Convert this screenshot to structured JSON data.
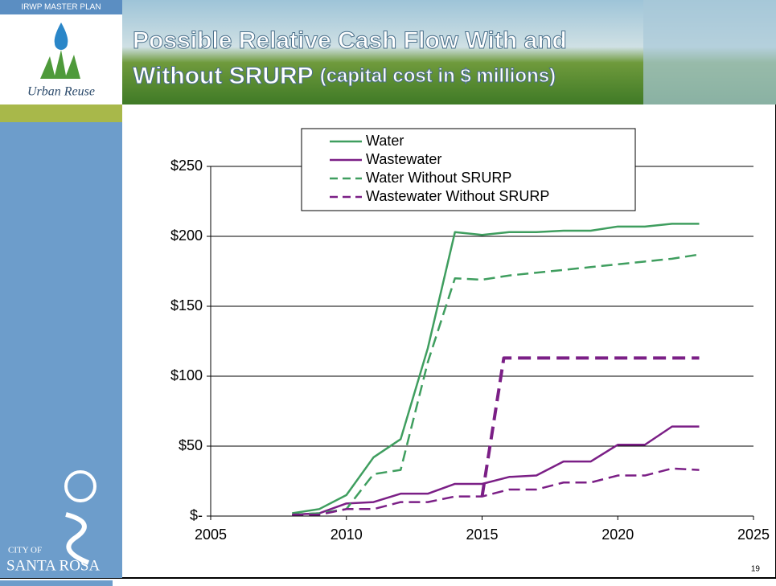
{
  "header": {
    "badge": "IRWP MASTER PLAN",
    "logo_text": "Urban Reuse",
    "city_top": "CITY OF",
    "city_name": "SANTA ROSA",
    "page_number": "19"
  },
  "chart_data": {
    "type": "line",
    "title": "Possible Relative Cash Flow With and Without SRURP",
    "subtitle": "(capital cost in $ millions)",
    "xlim": [
      2005,
      2025
    ],
    "xticks": [
      2005,
      2010,
      2015,
      2020,
      2025
    ],
    "ylim": [
      0,
      250
    ],
    "yticks": [
      {
        "value": 0,
        "label": "$-"
      },
      {
        "value": 50,
        "label": "$50"
      },
      {
        "value": 100,
        "label": "$100"
      },
      {
        "value": 150,
        "label": "$150"
      },
      {
        "value": 200,
        "label": "$200"
      },
      {
        "value": 250,
        "label": "$250"
      }
    ],
    "grid": true,
    "legend": "top",
    "series": [
      {
        "name": "Water",
        "color": "#3f9e5f",
        "dash": false,
        "x": [
          2008,
          2009,
          2010,
          2011,
          2012,
          2013,
          2014,
          2015,
          2016,
          2017,
          2018,
          2019,
          2020,
          2021,
          2022,
          2023
        ],
        "values": [
          2,
          5,
          15,
          42,
          55,
          120,
          203,
          201,
          203,
          203,
          204,
          204,
          207,
          207,
          209,
          209
        ]
      },
      {
        "name": "Wastewater",
        "color": "#7b1f86",
        "dash": false,
        "x": [
          2008,
          2009,
          2010,
          2011,
          2012,
          2013,
          2014,
          2015,
          2016,
          2017,
          2018,
          2019,
          2020,
          2021,
          2022,
          2023
        ],
        "values": [
          1,
          2,
          9,
          10,
          16,
          16,
          23,
          23,
          28,
          29,
          39,
          39,
          51,
          51,
          64,
          64
        ]
      },
      {
        "name": "Water Without SRURP",
        "color": "#3f9e5f",
        "dash": true,
        "x": [
          2008,
          2009,
          2010,
          2011,
          2012,
          2013,
          2014,
          2015,
          2016,
          2017,
          2018,
          2019,
          2020,
          2021,
          2022,
          2023
        ],
        "values": [
          1,
          2,
          5,
          30,
          33,
          110,
          170,
          169,
          172,
          174,
          176,
          178,
          180,
          182,
          184,
          187
        ]
      },
      {
        "name": "Wastewater Without SRURP",
        "color": "#7b1f86",
        "dash": true,
        "x": [
          2008,
          2009,
          2010,
          2011,
          2012,
          2013,
          2014,
          2015,
          2016,
          2017,
          2018,
          2019,
          2020,
          2021,
          2022,
          2023
        ],
        "values": [
          1,
          1,
          5,
          5,
          10,
          10,
          14,
          14,
          19,
          19,
          24,
          24,
          29,
          29,
          34,
          33
        ]
      },
      {
        "color": "#7b1f86",
        "dash": true,
        "thick": true,
        "x": [
          2015,
          2015.8,
          2023
        ],
        "values": [
          14,
          113,
          113
        ]
      }
    ]
  }
}
